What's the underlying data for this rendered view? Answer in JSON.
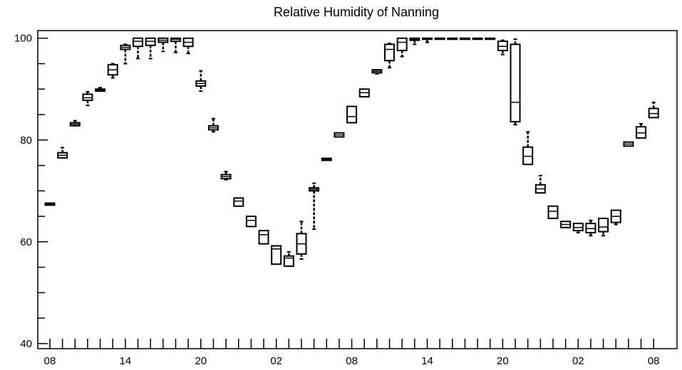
{
  "chart_data": {
    "type": "box",
    "title": "Relative Humidity of Nanning",
    "xlabel": "",
    "ylabel": "",
    "ylim": [
      39,
      101.5
    ],
    "y_ticks_major": [
      40,
      60,
      80,
      100
    ],
    "y_ticks_minor_step": 5,
    "x_tick_labels": [
      {
        "index": 0,
        "label": "08"
      },
      {
        "index": 6,
        "label": "14"
      },
      {
        "index": 12,
        "label": "20"
      },
      {
        "index": 18,
        "label": "02"
      },
      {
        "index": 24,
        "label": "08"
      },
      {
        "index": 30,
        "label": "14"
      },
      {
        "index": 36,
        "label": "20"
      },
      {
        "index": 42,
        "label": "02"
      },
      {
        "index": 48,
        "label": "08"
      }
    ],
    "grid": false,
    "series": [
      {
        "boxes": [
          {
            "x": 0,
            "min": 67.2,
            "q1": 67.2,
            "median": 67.4,
            "q3": 67.6,
            "max": 67.6
          },
          {
            "x": 1,
            "min": 76.5,
            "q1": 76.5,
            "median": 77.0,
            "q3": 77.5,
            "max": 78.5
          },
          {
            "x": 2,
            "min": 82.8,
            "q1": 82.8,
            "median": 83.1,
            "q3": 83.4,
            "max": 83.8
          },
          {
            "x": 3,
            "min": 86.8,
            "q1": 87.8,
            "median": 88.3,
            "q3": 89.0,
            "max": 89.5
          },
          {
            "x": 4,
            "min": 89.6,
            "q1": 89.6,
            "median": 89.8,
            "q3": 90.0,
            "max": 90.3
          },
          {
            "x": 5,
            "min": 92.2,
            "q1": 92.8,
            "median": 93.8,
            "q3": 94.8,
            "max": 95.0
          },
          {
            "x": 6,
            "min": 95.0,
            "q1": 97.8,
            "median": 98.2,
            "q3": 98.6,
            "max": 98.8
          },
          {
            "x": 7,
            "min": 96.0,
            "q1": 98.4,
            "median": 99.4,
            "q3": 100.0,
            "max": 100.0
          },
          {
            "x": 8,
            "min": 96.0,
            "q1": 98.6,
            "median": 99.4,
            "q3": 100.0,
            "max": 100.0
          },
          {
            "x": 9,
            "min": 97.4,
            "q1": 99.2,
            "median": 99.6,
            "q3": 100.0,
            "max": 100.0
          },
          {
            "x": 10,
            "min": 97.2,
            "q1": 99.4,
            "median": 99.8,
            "q3": 100.0,
            "max": 100.0
          },
          {
            "x": 11,
            "min": 97.0,
            "q1": 98.4,
            "median": 99.2,
            "q3": 100.0,
            "max": 100.0
          },
          {
            "x": 12,
            "min": 89.6,
            "q1": 90.6,
            "median": 91.1,
            "q3": 91.6,
            "max": 93.6
          },
          {
            "x": 13,
            "min": 81.6,
            "q1": 82.0,
            "median": 82.4,
            "q3": 82.8,
            "max": 84.2
          },
          {
            "x": 14,
            "min": 72.2,
            "q1": 72.4,
            "median": 72.8,
            "q3": 73.2,
            "max": 73.8
          },
          {
            "x": 15,
            "min": 67.0,
            "q1": 67.0,
            "median": 68.0,
            "q3": 68.6,
            "max": 68.6
          },
          {
            "x": 16,
            "min": 63.0,
            "q1": 63.0,
            "median": 64.2,
            "q3": 65.0,
            "max": 65.0
          },
          {
            "x": 17,
            "min": 59.6,
            "q1": 59.6,
            "median": 61.4,
            "q3": 62.2,
            "max": 62.2
          },
          {
            "x": 18,
            "min": 55.6,
            "q1": 55.6,
            "median": 58.6,
            "q3": 59.2,
            "max": 59.2
          },
          {
            "x": 19,
            "min": 55.2,
            "q1": 55.2,
            "median": 56.8,
            "q3": 57.2,
            "max": 58.0
          },
          {
            "x": 20,
            "min": 56.6,
            "q1": 57.6,
            "median": 59.6,
            "q3": 61.6,
            "max": 64.0
          },
          {
            "x": 21,
            "min": 62.5,
            "q1": 70.0,
            "median": 70.3,
            "q3": 70.6,
            "max": 71.5
          },
          {
            "x": 22,
            "min": 76.0,
            "q1": 76.0,
            "median": 76.2,
            "q3": 76.4,
            "max": 76.4
          },
          {
            "x": 23,
            "min": 80.6,
            "q1": 80.6,
            "median": 81.0,
            "q3": 81.4,
            "max": 81.4
          },
          {
            "x": 24,
            "min": 83.4,
            "q1": 83.4,
            "median": 84.6,
            "q3": 86.6,
            "max": 86.6
          },
          {
            "x": 25,
            "min": 88.5,
            "q1": 88.5,
            "median": 89.3,
            "q3": 90.0,
            "max": 90.0
          },
          {
            "x": 26,
            "min": 93.0,
            "q1": 93.2,
            "median": 93.5,
            "q3": 93.8,
            "max": 93.8
          },
          {
            "x": 27,
            "min": 94.2,
            "q1": 95.6,
            "median": 97.8,
            "q3": 98.8,
            "max": 99.0
          },
          {
            "x": 28,
            "min": 96.4,
            "q1": 97.6,
            "median": 99.2,
            "q3": 100.0,
            "max": 100.0
          },
          {
            "x": 29,
            "min": 98.8,
            "q1": 99.6,
            "median": 99.8,
            "q3": 100.0,
            "max": 100.0
          },
          {
            "x": 30,
            "min": 99.2,
            "q1": 99.8,
            "median": 99.9,
            "q3": 100.0,
            "max": 100.0
          },
          {
            "x": 31,
            "min": 100.0,
            "q1": 100.0,
            "median": 100.0,
            "q3": 100.0,
            "max": 100.0
          },
          {
            "x": 32,
            "min": 100.0,
            "q1": 100.0,
            "median": 100.0,
            "q3": 100.0,
            "max": 100.0
          },
          {
            "x": 33,
            "min": 100.0,
            "q1": 100.0,
            "median": 100.0,
            "q3": 100.0,
            "max": 100.0
          },
          {
            "x": 34,
            "min": 100.0,
            "q1": 100.0,
            "median": 100.0,
            "q3": 100.0,
            "max": 100.0
          },
          {
            "x": 35,
            "min": 100.0,
            "q1": 100.0,
            "median": 100.0,
            "q3": 100.0,
            "max": 100.0
          },
          {
            "x": 36,
            "min": 96.8,
            "q1": 97.6,
            "median": 98.4,
            "q3": 99.4,
            "max": 99.6
          },
          {
            "x": 37,
            "min": 83.0,
            "q1": 83.6,
            "median": 87.4,
            "q3": 98.8,
            "max": 99.8
          },
          {
            "x": 38,
            "min": 75.2,
            "q1": 75.2,
            "median": 76.8,
            "q3": 78.6,
            "max": 81.6
          },
          {
            "x": 39,
            "min": 69.6,
            "q1": 69.6,
            "median": 70.4,
            "q3": 71.2,
            "max": 73.0
          },
          {
            "x": 40,
            "min": 64.6,
            "q1": 64.6,
            "median": 66.0,
            "q3": 67.0,
            "max": 67.0
          },
          {
            "x": 41,
            "min": 62.8,
            "q1": 62.8,
            "median": 63.4,
            "q3": 64.0,
            "max": 64.0
          },
          {
            "x": 42,
            "min": 61.8,
            "q1": 62.2,
            "median": 62.8,
            "q3": 63.6,
            "max": 63.6
          },
          {
            "x": 43,
            "min": 61.2,
            "q1": 61.8,
            "median": 62.6,
            "q3": 63.6,
            "max": 64.2
          },
          {
            "x": 44,
            "min": 61.2,
            "q1": 62.0,
            "median": 62.9,
            "q3": 64.6,
            "max": 64.6
          },
          {
            "x": 45,
            "min": 63.4,
            "q1": 63.8,
            "median": 65.0,
            "q3": 66.2,
            "max": 66.2
          },
          {
            "x": 46,
            "min": 78.8,
            "q1": 78.8,
            "median": 79.2,
            "q3": 79.6,
            "max": 79.6
          },
          {
            "x": 47,
            "min": 80.4,
            "q1": 80.4,
            "median": 81.4,
            "q3": 82.6,
            "max": 83.2
          },
          {
            "x": 48,
            "min": 84.4,
            "q1": 84.4,
            "median": 85.2,
            "q3": 86.2,
            "max": 87.4
          }
        ]
      }
    ]
  }
}
